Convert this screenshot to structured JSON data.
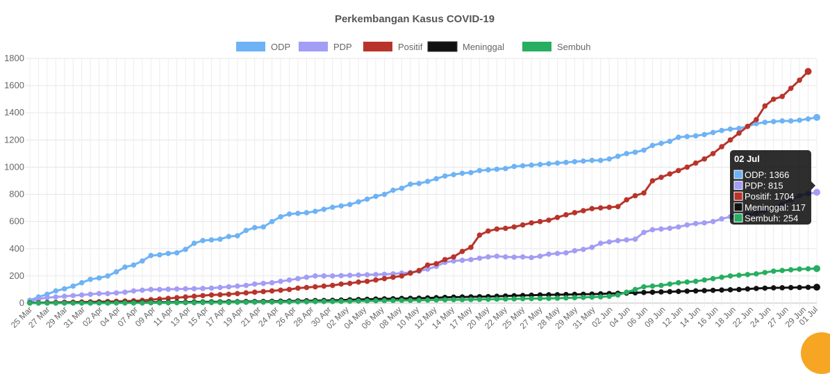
{
  "chart_data": {
    "type": "line",
    "title": "Perkembangan Kasus COVID-19",
    "ylim": [
      0,
      1800
    ],
    "yticks": [
      0,
      200,
      400,
      600,
      800,
      1000,
      1200,
      1400,
      1600,
      1800
    ],
    "grid": true,
    "legend_position": "top",
    "x_tick_labels": [
      "25 Mar",
      "27 Mar",
      "29 Mar",
      "31 Mar",
      "02 Apr",
      "04 Apr",
      "07 Apr",
      "09 Apr",
      "11 Apr",
      "13 Apr",
      "15 Apr",
      "17 Apr",
      "19 Apr",
      "21 Apr",
      "24 Apr",
      "26 Apr",
      "28 Apr",
      "30 Apr",
      "02 May",
      "04 May",
      "06 May",
      "08 May",
      "10 May",
      "12 May",
      "14 May",
      "17 May",
      "20 May",
      "22 May",
      "25 May",
      "27 May",
      "28 May",
      "29 May",
      "31 May",
      "02 Jun",
      "04 Jun",
      "06 Jun",
      "09 Jun",
      "12 Jun",
      "14 Jun",
      "16 Jun",
      "18 Jun",
      "22 Jun",
      "24 Jun",
      "27 Jun",
      "29 Jun",
      "01 Jul"
    ],
    "series": [
      {
        "name": "ODP",
        "color": "#6eb3f5",
        "values": [
          20,
          45,
          65,
          90,
          105,
          125,
          150,
          175,
          185,
          200,
          230,
          265,
          280,
          310,
          350,
          355,
          365,
          370,
          395,
          440,
          460,
          465,
          470,
          490,
          495,
          535,
          555,
          560,
          600,
          635,
          655,
          660,
          665,
          675,
          690,
          705,
          715,
          725,
          745,
          765,
          785,
          800,
          830,
          845,
          875,
          880,
          895,
          915,
          935,
          945,
          955,
          960,
          975,
          980,
          985,
          990,
          1005,
          1010,
          1015,
          1020,
          1025,
          1030,
          1035,
          1040,
          1045,
          1050,
          1050,
          1060,
          1080,
          1100,
          1110,
          1125,
          1160,
          1175,
          1190,
          1220,
          1225,
          1230,
          1240,
          1255,
          1270,
          1280,
          1285,
          1300,
          1320,
          1330,
          1335,
          1340,
          1340,
          1345,
          1355,
          1366
        ]
      },
      {
        "name": "PDP",
        "color": "#a29df5",
        "values": [
          10,
          30,
          40,
          45,
          50,
          55,
          60,
          65,
          70,
          70,
          75,
          80,
          90,
          95,
          100,
          100,
          102,
          104,
          105,
          106,
          108,
          110,
          115,
          120,
          125,
          130,
          140,
          145,
          150,
          160,
          170,
          180,
          190,
          200,
          200,
          200,
          202,
          204,
          206,
          208,
          210,
          212,
          215,
          220,
          225,
          235,
          250,
          270,
          300,
          310,
          315,
          320,
          330,
          340,
          345,
          340,
          338,
          340,
          335,
          345,
          360,
          365,
          370,
          385,
          395,
          410,
          440,
          450,
          460,
          465,
          470,
          520,
          540,
          545,
          550,
          560,
          575,
          585,
          590,
          600,
          620,
          635,
          640,
          650,
          660,
          680,
          700,
          730,
          760,
          790,
          805,
          815
        ]
      },
      {
        "name": "Positif",
        "color": "#b8342b",
        "values": [
          2,
          3,
          4,
          5,
          6,
          7,
          8,
          9,
          10,
          12,
          13,
          15,
          17,
          20,
          25,
          30,
          35,
          40,
          45,
          50,
          55,
          60,
          62,
          65,
          70,
          75,
          80,
          85,
          90,
          95,
          100,
          110,
          115,
          120,
          125,
          130,
          140,
          145,
          155,
          160,
          170,
          180,
          190,
          200,
          220,
          240,
          280,
          290,
          320,
          340,
          380,
          410,
          500,
          530,
          545,
          550,
          560,
          575,
          590,
          600,
          610,
          630,
          650,
          665,
          680,
          695,
          700,
          705,
          710,
          760,
          790,
          810,
          900,
          925,
          950,
          975,
          1000,
          1030,
          1060,
          1100,
          1150,
          1200,
          1250,
          1300,
          1350,
          1450,
          1500,
          1520,
          1580,
          1640,
          1704
        ]
      },
      {
        "name": "Meninggal",
        "color": "#111111",
        "values": [
          1,
          1,
          2,
          2,
          2,
          3,
          3,
          3,
          4,
          4,
          4,
          5,
          5,
          5,
          6,
          6,
          6,
          7,
          7,
          8,
          8,
          9,
          9,
          10,
          10,
          11,
          11,
          12,
          13,
          14,
          15,
          16,
          17,
          18,
          19,
          20,
          22,
          24,
          26,
          28,
          30,
          31,
          32,
          34,
          35,
          36,
          38,
          40,
          42,
          44,
          45,
          46,
          47,
          48,
          50,
          52,
          54,
          56,
          58,
          60,
          61,
          62,
          63,
          64,
          65,
          66,
          68,
          70,
          72,
          74,
          76,
          78,
          80,
          82,
          84,
          86,
          88,
          90,
          92,
          94,
          96,
          98,
          100,
          104,
          108,
          110,
          112,
          113,
          114,
          115,
          116,
          117
        ]
      },
      {
        "name": "Sembuh",
        "color": "#27ae60",
        "values": [
          0,
          0,
          0,
          0,
          0,
          0,
          0,
          0,
          0,
          0,
          1,
          1,
          1,
          1,
          2,
          2,
          2,
          3,
          3,
          3,
          4,
          4,
          5,
          5,
          6,
          6,
          7,
          7,
          8,
          8,
          9,
          10,
          10,
          11,
          12,
          12,
          13,
          14,
          15,
          16,
          17,
          18,
          19,
          20,
          20,
          21,
          22,
          23,
          24,
          25,
          25,
          26,
          27,
          28,
          29,
          30,
          31,
          32,
          33,
          34,
          35,
          36,
          38,
          40,
          42,
          44,
          46,
          50,
          60,
          80,
          100,
          120,
          125,
          130,
          140,
          150,
          155,
          160,
          170,
          180,
          190,
          200,
          205,
          210,
          215,
          225,
          235,
          240,
          245,
          250,
          252,
          254
        ]
      }
    ],
    "tooltip": {
      "title": "02 Jul",
      "lines": [
        "ODP: 1366",
        "PDP: 815",
        "Positif: 1704",
        "Meninggal: 117",
        "Sembuh: 254"
      ]
    }
  }
}
